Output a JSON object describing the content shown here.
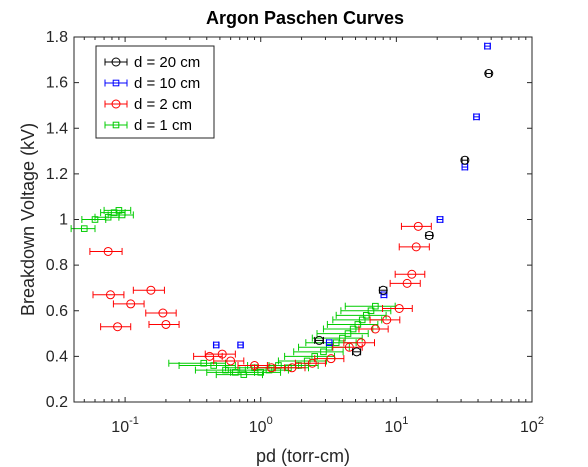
{
  "chart_data": {
    "type": "scatter",
    "title": "Argon Paschen Curves",
    "xlabel": "pd (torr-cm)",
    "ylabel": "Breakdown Voltage (kV)",
    "xscale": "log",
    "xlim": [
      0.042,
      100
    ],
    "ylim": [
      0.2,
      1.8
    ],
    "x_ticks": [
      0.1,
      1,
      10,
      100
    ],
    "x_tick_labels": [
      {
        "base": "10",
        "exp": "-1"
      },
      {
        "base": "10",
        "exp": "0"
      },
      {
        "base": "10",
        "exp": "1"
      },
      {
        "base": "10",
        "exp": "2"
      }
    ],
    "y_ticks": [
      0.2,
      0.4,
      0.6,
      0.8,
      1,
      1.2,
      1.4,
      1.6,
      1.8
    ],
    "y_tick_labels": [
      "0.2",
      "0.4",
      "0.6",
      "0.8",
      "1",
      "1.2",
      "1.4",
      "1.6",
      "1.8"
    ],
    "grid": false,
    "legend_position": "top-left",
    "error_bars": "horizontal",
    "series": [
      {
        "name": "d = 20 cm",
        "color": "#000000",
        "marker": "circle",
        "points": [
          {
            "x": 2.7,
            "y": 0.47,
            "xerr": 0.2
          },
          {
            "x": 5.1,
            "y": 0.42,
            "xerr": 0.35
          },
          {
            "x": 8.0,
            "y": 0.69,
            "xerr": 0.5
          },
          {
            "x": 17.5,
            "y": 0.93,
            "xerr": 1.0
          },
          {
            "x": 32,
            "y": 1.26,
            "xerr": 1.5
          },
          {
            "x": 48,
            "y": 1.64,
            "xerr": 2.2
          }
        ]
      },
      {
        "name": "d = 10 cm",
        "color": "#0000ff",
        "marker": "square",
        "points": [
          {
            "x": 0.47,
            "y": 0.45,
            "xerr": 0.02
          },
          {
            "x": 0.71,
            "y": 0.45,
            "xerr": 0.03
          },
          {
            "x": 3.2,
            "y": 0.46,
            "xerr": 0.15
          },
          {
            "x": 8.1,
            "y": 0.67,
            "xerr": 0.4
          },
          {
            "x": 21,
            "y": 1.0,
            "xerr": 1.0
          },
          {
            "x": 32,
            "y": 1.23,
            "xerr": 1.5
          },
          {
            "x": 39,
            "y": 1.45,
            "xerr": 1.8
          },
          {
            "x": 47,
            "y": 1.76,
            "xerr": 2.2
          }
        ]
      },
      {
        "name": "d = 2 cm",
        "color": "#ff0000",
        "marker": "circle",
        "points": [
          {
            "x": 0.075,
            "y": 0.86,
            "xerr": 0.02
          },
          {
            "x": 0.078,
            "y": 0.67,
            "xerr": 0.02
          },
          {
            "x": 0.088,
            "y": 0.53,
            "xerr": 0.022
          },
          {
            "x": 0.11,
            "y": 0.63,
            "xerr": 0.028
          },
          {
            "x": 0.155,
            "y": 0.69,
            "xerr": 0.04
          },
          {
            "x": 0.19,
            "y": 0.59,
            "xerr": 0.048
          },
          {
            "x": 0.2,
            "y": 0.54,
            "xerr": 0.05
          },
          {
            "x": 0.42,
            "y": 0.4,
            "xerr": 0.1
          },
          {
            "x": 0.52,
            "y": 0.41,
            "xerr": 0.13
          },
          {
            "x": 0.6,
            "y": 0.38,
            "xerr": 0.15
          },
          {
            "x": 0.9,
            "y": 0.36,
            "xerr": 0.22
          },
          {
            "x": 1.2,
            "y": 0.35,
            "xerr": 0.3
          },
          {
            "x": 1.7,
            "y": 0.35,
            "xerr": 0.42
          },
          {
            "x": 2.4,
            "y": 0.37,
            "xerr": 0.6
          },
          {
            "x": 3.3,
            "y": 0.39,
            "xerr": 0.8
          },
          {
            "x": 4.5,
            "y": 0.44,
            "xerr": 1.1
          },
          {
            "x": 5.5,
            "y": 0.46,
            "xerr": 1.4
          },
          {
            "x": 7.0,
            "y": 0.52,
            "xerr": 1.7
          },
          {
            "x": 8.5,
            "y": 0.56,
            "xerr": 2.1
          },
          {
            "x": 10.5,
            "y": 0.61,
            "xerr": 2.6
          },
          {
            "x": 12,
            "y": 0.72,
            "xerr": 3.0
          },
          {
            "x": 13,
            "y": 0.76,
            "xerr": 3.2
          },
          {
            "x": 14,
            "y": 0.88,
            "xerr": 3.5
          },
          {
            "x": 14.5,
            "y": 0.97,
            "xerr": 3.6
          }
        ]
      },
      {
        "name": "d = 1 cm",
        "color": "#00cc00",
        "marker": "square",
        "points": [
          {
            "x": 0.05,
            "y": 0.96,
            "xerr": 0.01
          },
          {
            "x": 0.06,
            "y": 1.0,
            "xerr": 0.012
          },
          {
            "x": 0.075,
            "y": 1.01,
            "xerr": 0.015
          },
          {
            "x": 0.083,
            "y": 1.03,
            "xerr": 0.017
          },
          {
            "x": 0.09,
            "y": 1.04,
            "xerr": 0.02
          },
          {
            "x": 0.095,
            "y": 1.02,
            "xerr": 0.02
          },
          {
            "x": 0.38,
            "y": 0.37,
            "xerr": 0.17
          },
          {
            "x": 0.45,
            "y": 0.36,
            "xerr": 0.2
          },
          {
            "x": 0.55,
            "y": 0.34,
            "xerr": 0.22
          },
          {
            "x": 0.65,
            "y": 0.33,
            "xerr": 0.25
          },
          {
            "x": 0.75,
            "y": 0.32,
            "xerr": 0.28
          },
          {
            "x": 0.9,
            "y": 0.35,
            "xerr": 0.35
          },
          {
            "x": 1.0,
            "y": 0.33,
            "xerr": 0.4
          },
          {
            "x": 1.15,
            "y": 0.34,
            "xerr": 0.45
          },
          {
            "x": 1.35,
            "y": 0.36,
            "xerr": 0.55
          },
          {
            "x": 1.6,
            "y": 0.35,
            "xerr": 0.65
          },
          {
            "x": 1.9,
            "y": 0.36,
            "xerr": 0.75
          },
          {
            "x": 2.2,
            "y": 0.38,
            "xerr": 0.85
          },
          {
            "x": 2.5,
            "y": 0.4,
            "xerr": 1.0
          },
          {
            "x": 2.9,
            "y": 0.42,
            "xerr": 1.15
          },
          {
            "x": 3.2,
            "y": 0.44,
            "xerr": 1.3
          },
          {
            "x": 3.6,
            "y": 0.46,
            "xerr": 1.45
          },
          {
            "x": 4.0,
            "y": 0.48,
            "xerr": 1.6
          },
          {
            "x": 4.4,
            "y": 0.5,
            "xerr": 1.8
          },
          {
            "x": 4.8,
            "y": 0.52,
            "xerr": 1.9
          },
          {
            "x": 5.2,
            "y": 0.54,
            "xerr": 2.1
          },
          {
            "x": 5.6,
            "y": 0.56,
            "xerr": 2.2
          },
          {
            "x": 6.0,
            "y": 0.58,
            "xerr": 2.4
          },
          {
            "x": 6.5,
            "y": 0.6,
            "xerr": 2.6
          },
          {
            "x": 7.0,
            "y": 0.62,
            "xerr": 2.8
          }
        ]
      }
    ]
  }
}
